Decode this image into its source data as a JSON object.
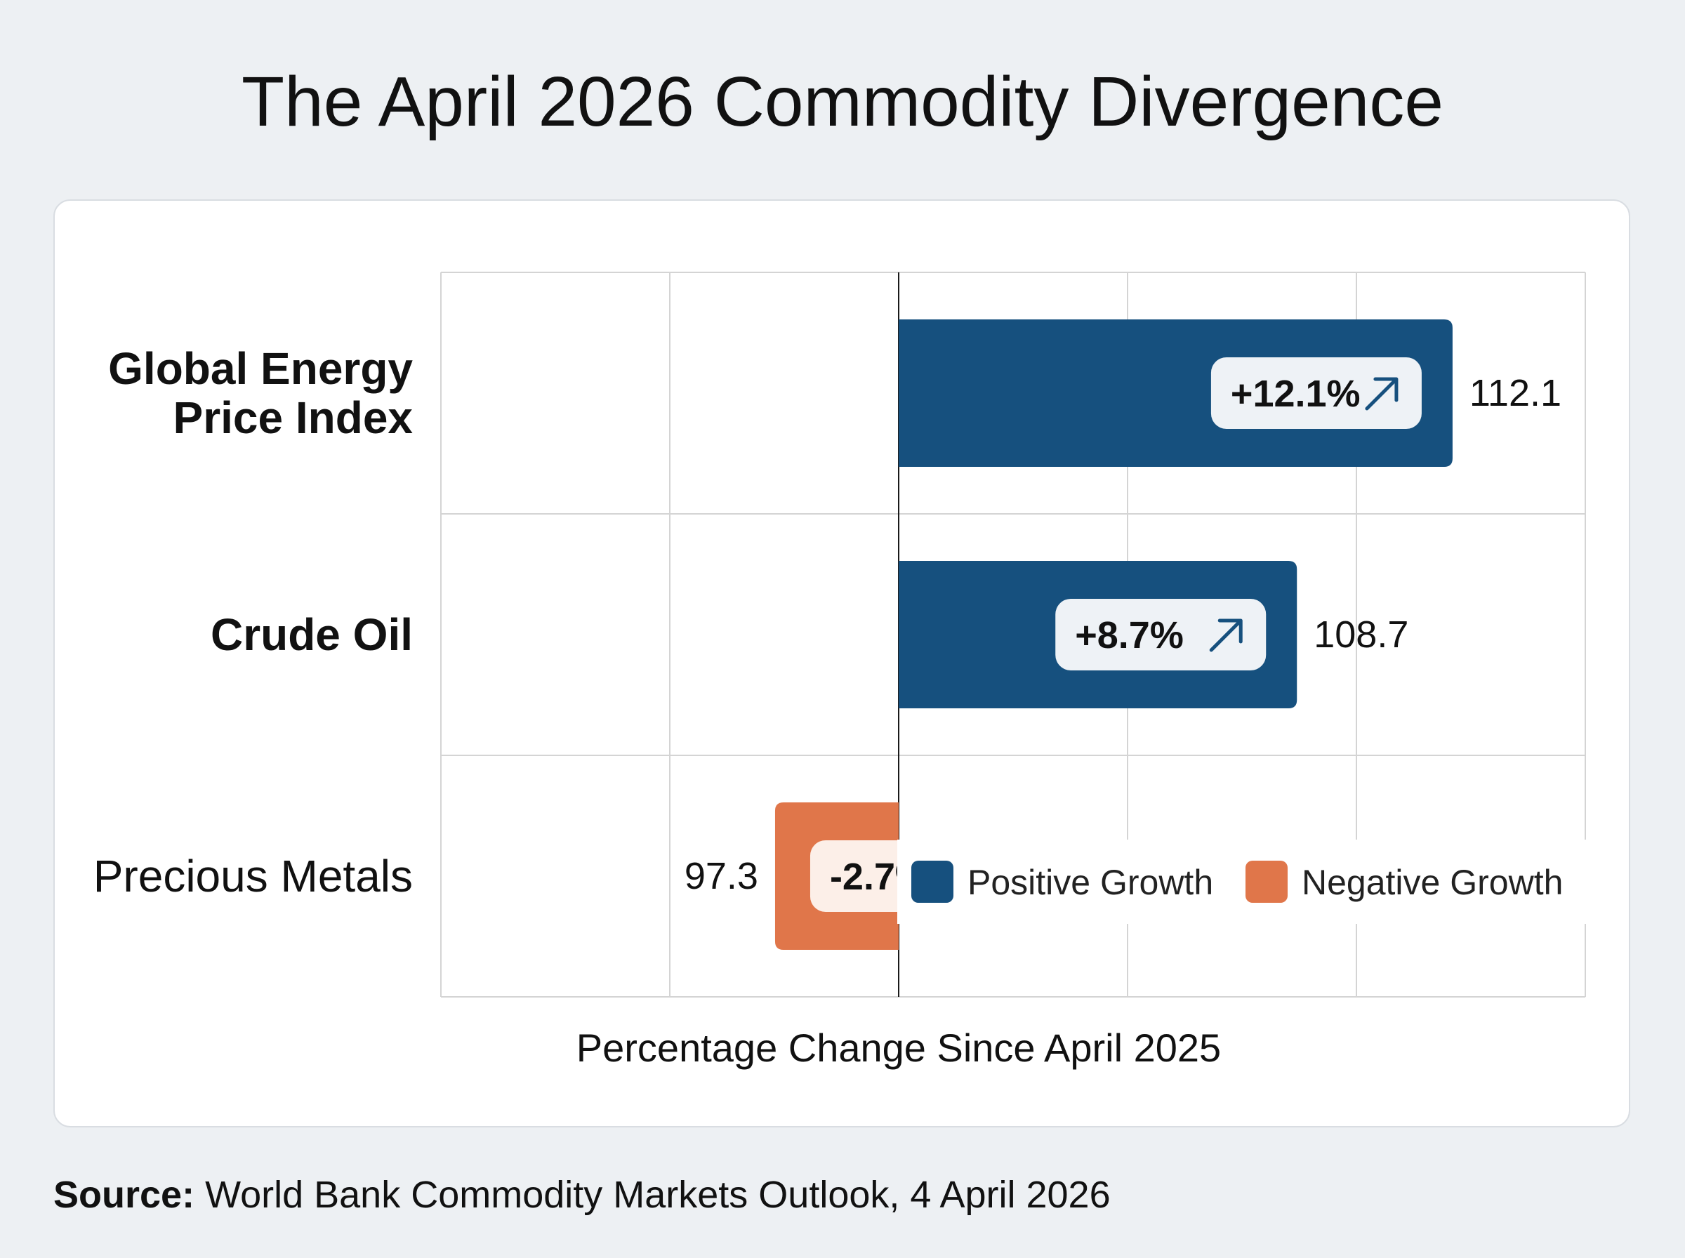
{
  "page": {
    "title": "The April 2026 Commodity Divergence",
    "source_label": "Source:",
    "source_text": "World Bank Commodity Markets Outlook, 4 April 2026"
  },
  "colors": {
    "positive": "#16507e",
    "negative": "#e0764a",
    "background": "#edf0f3",
    "card": "#ffffff",
    "grid": "#d4d4d4"
  },
  "chart_data": {
    "type": "bar",
    "orientation": "horizontal",
    "title": "The April 2026 Commodity Divergence",
    "xlabel": "Percentage Change Since April 2025",
    "ylabel": "",
    "xlim": [
      -10,
      15
    ],
    "grid": true,
    "legend_position": "bottom-right",
    "categories": [
      [
        "Global Energy",
        "Price Index"
      ],
      [
        "Crude Oil"
      ],
      [
        "Precious Metals"
      ]
    ],
    "category_bold": [
      true,
      true,
      false
    ],
    "values": [
      12.1,
      8.7,
      -2.7
    ],
    "value_labels": [
      "+12.1%",
      "+8.7%",
      "-2.7%"
    ],
    "index_values": [
      "112.1",
      "108.7",
      "97.3"
    ],
    "trend_icons": [
      "arrow-up-right-icon",
      "arrow-up-right-icon",
      "arrow-down-right-icon"
    ],
    "legend": [
      {
        "name": "Positive Growth",
        "color": "#16507e"
      },
      {
        "name": "Negative Growth",
        "color": "#e0764a"
      }
    ]
  }
}
